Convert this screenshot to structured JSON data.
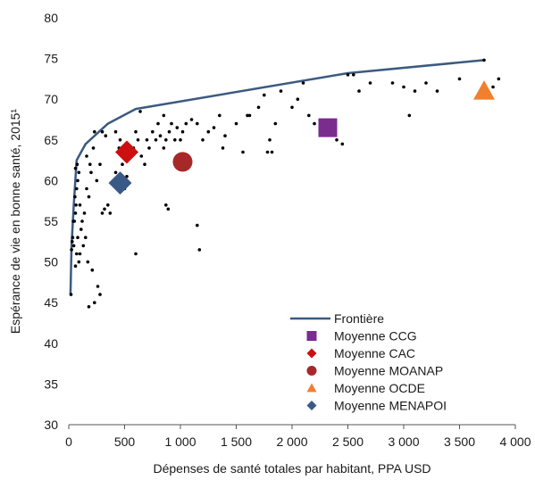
{
  "chart_data": {
    "type": "scatter",
    "xlabel": "Dépenses de santé totales par habitant, PPA USD",
    "ylabel": "Espérance de vie en bonne santé, 2015¹",
    "xlim": [
      0,
      4000
    ],
    "ylim": [
      30,
      80
    ],
    "x_ticks": [
      "0",
      "500",
      "1 000",
      "1 500",
      "2 000",
      "2 500",
      "3 000",
      "3 500",
      "4 000"
    ],
    "y_ticks": [
      "30",
      "35",
      "40",
      "45",
      "50",
      "55",
      "60",
      "65",
      "70",
      "75",
      "80"
    ],
    "grid": false,
    "legend_position": "bottom-right",
    "frontier": {
      "name": "Frontière",
      "color": "#3b5a80",
      "points": [
        [
          15,
          46
        ],
        [
          25,
          52
        ],
        [
          45,
          57
        ],
        [
          70,
          62.5
        ],
        [
          150,
          64.5
        ],
        [
          350,
          67
        ],
        [
          600,
          68.8
        ],
        [
          2500,
          73.2
        ],
        [
          3720,
          74.8
        ]
      ]
    },
    "countries": {
      "color": "#000000",
      "points": [
        [
          20,
          46
        ],
        [
          25,
          51.5
        ],
        [
          30,
          52.5
        ],
        [
          35,
          53
        ],
        [
          40,
          55
        ],
        [
          45,
          52
        ],
        [
          50,
          55
        ],
        [
          60,
          56
        ],
        [
          55,
          58
        ],
        [
          65,
          57
        ],
        [
          70,
          59
        ],
        [
          80,
          60
        ],
        [
          90,
          61
        ],
        [
          60,
          61.5
        ],
        [
          75,
          62
        ],
        [
          100,
          57
        ],
        [
          110,
          54
        ],
        [
          130,
          52
        ],
        [
          140,
          56
        ],
        [
          150,
          53
        ],
        [
          170,
          50
        ],
        [
          90,
          50
        ],
        [
          70,
          51
        ],
        [
          60,
          49.5
        ],
        [
          80,
          53
        ],
        [
          100,
          51
        ],
        [
          120,
          55
        ],
        [
          160,
          59
        ],
        [
          180,
          58
        ],
        [
          200,
          61
        ],
        [
          220,
          64
        ],
        [
          250,
          60
        ],
        [
          280,
          62
        ],
        [
          300,
          56
        ],
        [
          320,
          56.5
        ],
        [
          350,
          57
        ],
        [
          370,
          56
        ],
        [
          400,
          60
        ],
        [
          420,
          61
        ],
        [
          450,
          64
        ],
        [
          480,
          62
        ],
        [
          500,
          59
        ],
        [
          520,
          60.5
        ],
        [
          550,
          63
        ],
        [
          580,
          64
        ],
        [
          600,
          66
        ],
        [
          620,
          65
        ],
        [
          650,
          63
        ],
        [
          680,
          62
        ],
        [
          700,
          65
        ],
        [
          720,
          64
        ],
        [
          750,
          66
        ],
        [
          780,
          65
        ],
        [
          800,
          67
        ],
        [
          820,
          65.5
        ],
        [
          850,
          64
        ],
        [
          870,
          65
        ],
        [
          900,
          66
        ],
        [
          920,
          67
        ],
        [
          950,
          65
        ],
        [
          970,
          66.5
        ],
        [
          1000,
          65
        ],
        [
          1020,
          66
        ],
        [
          1050,
          67
        ],
        [
          1100,
          67.5
        ],
        [
          1150,
          67
        ],
        [
          1200,
          65
        ],
        [
          1250,
          66
        ],
        [
          1300,
          66.5
        ],
        [
          1350,
          68
        ],
        [
          1400,
          65.5
        ],
        [
          1500,
          67
        ],
        [
          1600,
          68
        ],
        [
          1700,
          69
        ],
        [
          1750,
          70.5
        ],
        [
          1800,
          65
        ],
        [
          1850,
          67
        ],
        [
          1900,
          71
        ],
        [
          2000,
          69
        ],
        [
          2050,
          70
        ],
        [
          2100,
          72
        ],
        [
          2150,
          68
        ],
        [
          2200,
          67
        ],
        [
          2400,
          65
        ],
        [
          2500,
          73
        ],
        [
          2550,
          73
        ],
        [
          2600,
          71
        ],
        [
          2700,
          72
        ],
        [
          2900,
          72
        ],
        [
          3000,
          71.5
        ],
        [
          3100,
          71
        ],
        [
          3200,
          72
        ],
        [
          3300,
          71
        ],
        [
          3500,
          72.5
        ],
        [
          3800,
          71.5
        ],
        [
          3850,
          72.5
        ],
        [
          3720,
          74.8
        ],
        [
          230,
          45
        ],
        [
          260,
          47
        ],
        [
          280,
          46
        ],
        [
          180,
          44.5
        ],
        [
          210,
          49
        ],
        [
          600,
          51
        ],
        [
          870,
          57
        ],
        [
          890,
          56.5
        ],
        [
          1150,
          54.5
        ],
        [
          1170,
          51.5
        ],
        [
          2450,
          64.5
        ],
        [
          3050,
          68
        ],
        [
          1620,
          68
        ],
        [
          1380,
          64
        ],
        [
          1560,
          63.5
        ],
        [
          1820,
          63.5
        ],
        [
          1780,
          63.5
        ],
        [
          640,
          68.5
        ],
        [
          850,
          68
        ],
        [
          420,
          66
        ],
        [
          460,
          65
        ],
        [
          490,
          64
        ],
        [
          300,
          66
        ],
        [
          330,
          65.5
        ],
        [
          160,
          63
        ],
        [
          190,
          62
        ],
        [
          230,
          66
        ]
      ]
    },
    "groups": [
      {
        "name": "Moyenne CCG",
        "x": 2320,
        "y": 66.5,
        "shape": "square",
        "color": "#7b2c8f"
      },
      {
        "name": "Moyenne CAC",
        "x": 520,
        "y": 63.5,
        "shape": "diamond",
        "color": "#cc1010"
      },
      {
        "name": "Moyenne MOANAP",
        "x": 1020,
        "y": 62.3,
        "shape": "circle",
        "color": "#a62828"
      },
      {
        "name": "Moyenne OCDE",
        "x": 3720,
        "y": 71,
        "shape": "triangle",
        "color": "#f07f2e"
      },
      {
        "name": "Moyenne MENAPOI",
        "x": 460,
        "y": 59.7,
        "shape": "diamond",
        "color": "#3a5a86"
      }
    ]
  }
}
